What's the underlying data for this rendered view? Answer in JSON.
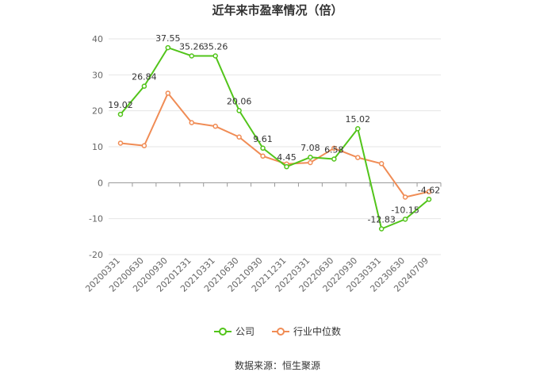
{
  "chart_data": {
    "type": "line",
    "title": "近年来市盈率情况（倍）",
    "categories": [
      "20200331",
      "20200630",
      "20200930",
      "20201231",
      "20210331",
      "20210630",
      "20210930",
      "20211231",
      "20220331",
      "20220630",
      "20220930",
      "20230331",
      "20230630",
      "20240709"
    ],
    "series": [
      {
        "name": "公司",
        "color": "#52c41a",
        "values": [
          19.02,
          26.84,
          37.55,
          35.26,
          35.26,
          20.06,
          9.61,
          4.45,
          7.08,
          6.58,
          15.02,
          -12.83,
          -10.15,
          -4.62
        ],
        "labels": [
          "19.02",
          "26.84",
          "37.55",
          "35.26",
          "35.26",
          "20.06",
          "9.61",
          "4.45",
          "7.08",
          "6.58",
          "15.02",
          "-12.83",
          "-10.15",
          "-4.62"
        ]
      },
      {
        "name": "行业中位数",
        "color": "#f08c55",
        "values": [
          11.0,
          10.3,
          24.9,
          16.7,
          15.7,
          12.7,
          7.4,
          5.2,
          5.6,
          9.6,
          7.0,
          5.3,
          -4.0,
          -2.5
        ]
      }
    ],
    "ylim": [
      -20,
      40
    ],
    "yticks": [
      -20,
      -10,
      0,
      10,
      20,
      30,
      40
    ],
    "grid": true,
    "legend_position": "bottom"
  },
  "source": "数据来源：恒生聚源"
}
